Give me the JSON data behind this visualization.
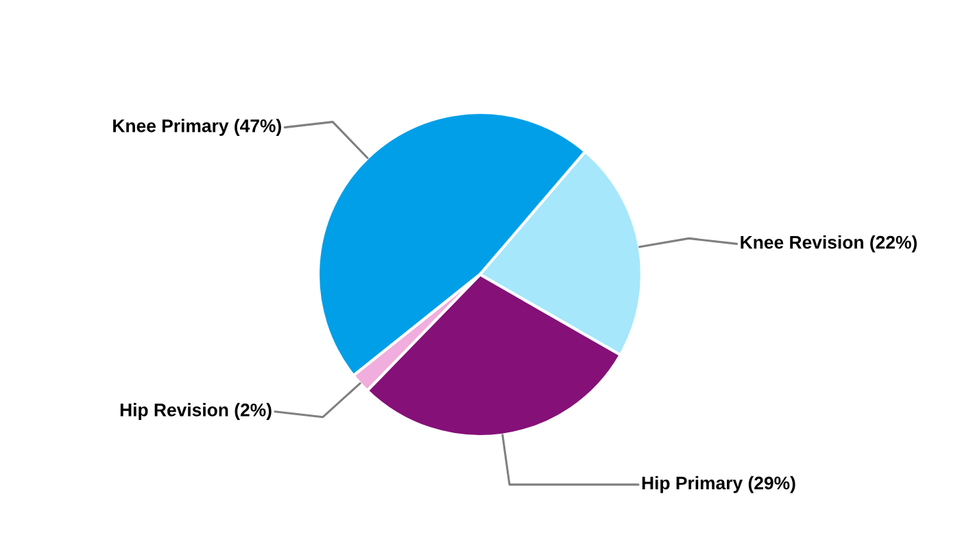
{
  "chart_data": {
    "type": "pie",
    "categories": [
      "Knee Primary",
      "Knee Revision",
      "Hip Primary",
      "Hip Revision"
    ],
    "values": [
      47,
      22,
      29,
      2
    ],
    "value_labels": [
      "(47%)",
      "(22%)",
      "(29%)",
      "(2%)"
    ],
    "colors": [
      "#009fe8",
      "#a6e7fc",
      "#851078",
      "#f0addd"
    ]
  }
}
